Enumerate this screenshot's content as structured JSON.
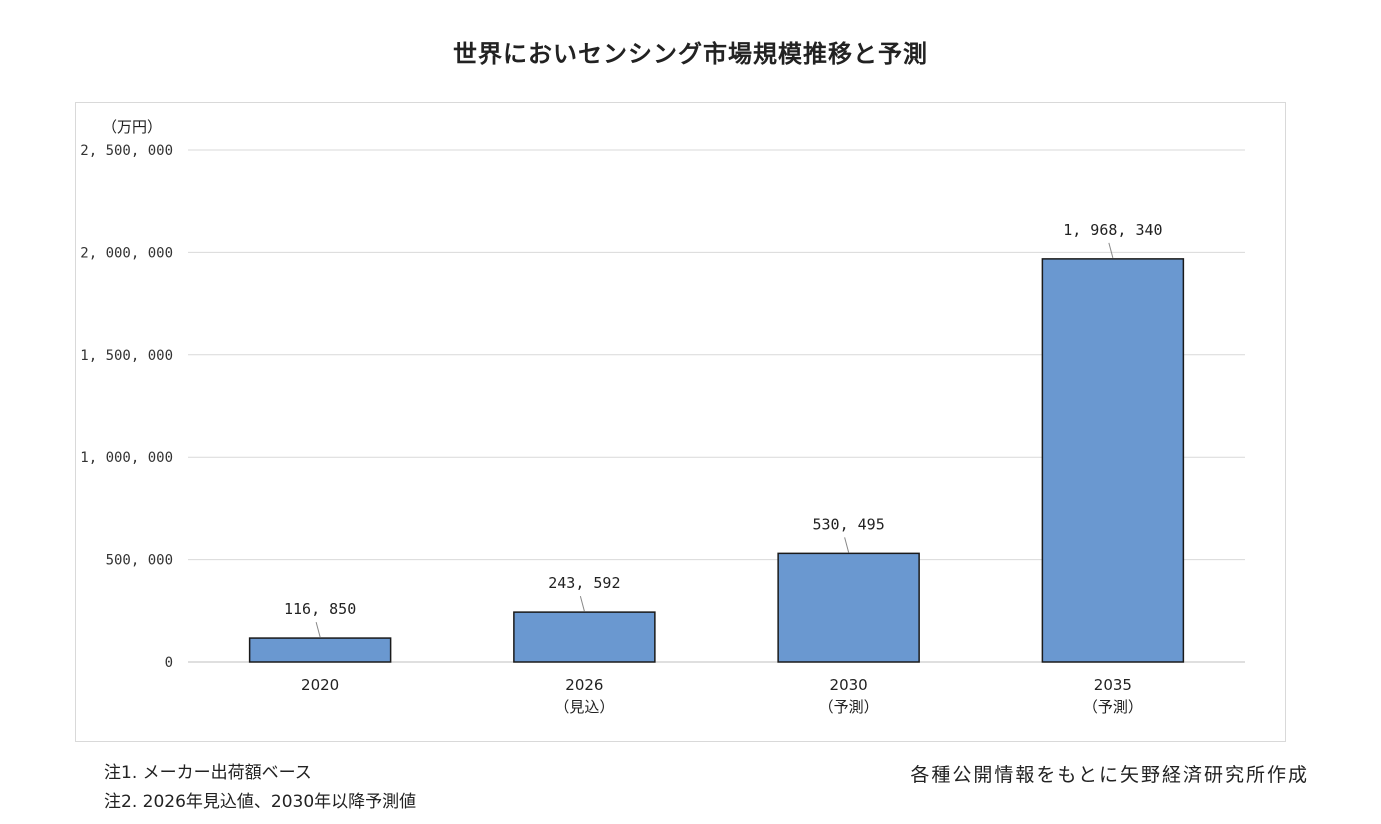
{
  "title": "世界においセンシング市場規模推移と予測",
  "notes": [
    "注1.  メーカー出荷額ベース",
    "注2.  2026年見込値、2030年以降予測値"
  ],
  "source": "各種公開情報をもとに矢野経済研究所作成",
  "chart_data": {
    "type": "bar",
    "unit_label": "（万円）",
    "categories": [
      [
        "2020"
      ],
      [
        "2026",
        "（見込）"
      ],
      [
        "2030",
        "（予測）"
      ],
      [
        "2035",
        "（予測）"
      ]
    ],
    "values": [
      116850,
      243592,
      530495,
      1968340
    ],
    "value_labels": [
      "116, 850",
      "243, 592",
      "530, 495",
      "1, 968, 340"
    ],
    "ylim": [
      0,
      2500000
    ],
    "yticks": [
      0,
      500000,
      1000000,
      1500000,
      2000000,
      2500000
    ],
    "ytick_labels": [
      "0",
      "500, 000",
      "1, 000, 000",
      "1, 500, 000",
      "2, 000, 000",
      "2, 500, 000"
    ],
    "grid": true,
    "bar_color": "#6a98d0",
    "bar_border": "#1a1a1a"
  }
}
